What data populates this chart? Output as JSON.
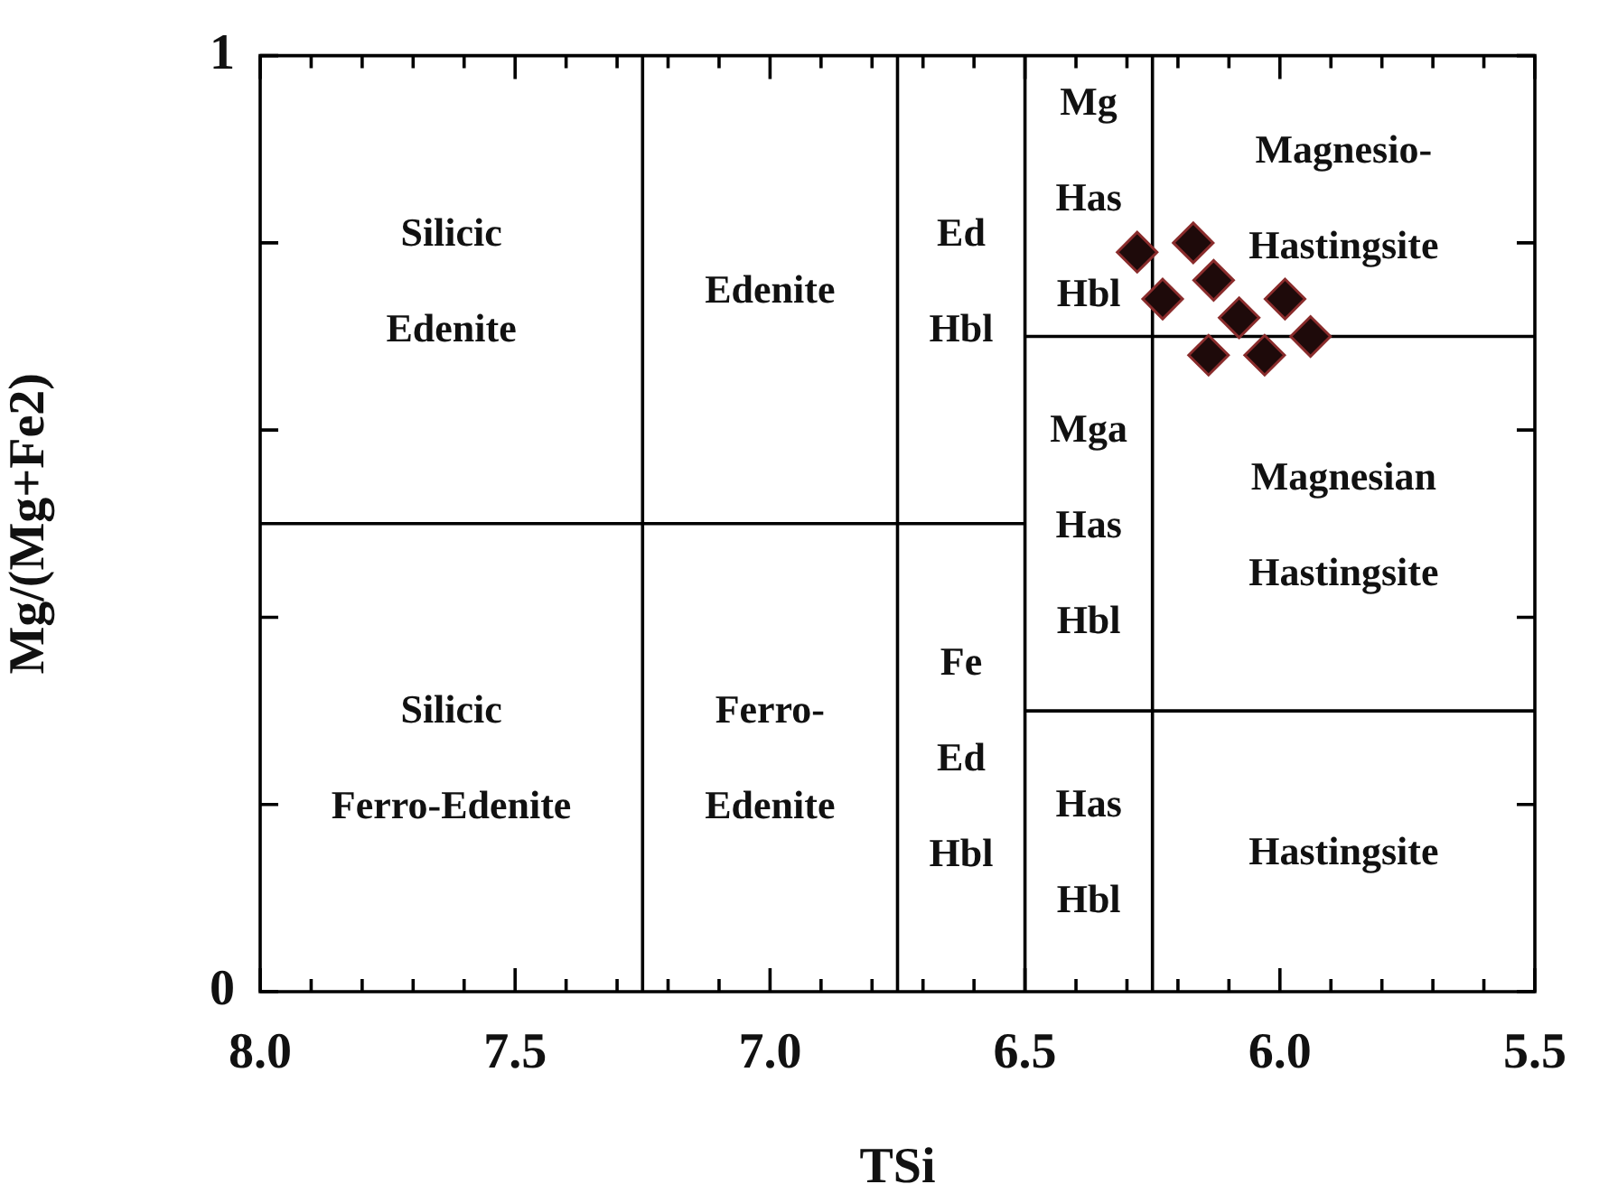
{
  "chart_data": {
    "type": "scatter",
    "xlabel": "TSi",
    "ylabel": "Mg/(Mg+Fe2)",
    "xlim": [
      8,
      5.5
    ],
    "ylim": [
      0,
      1
    ],
    "xticks": [
      {
        "value": 8,
        "label": "8.0"
      },
      {
        "value": 7.9,
        "label": null
      },
      {
        "value": 7.8,
        "label": null
      },
      {
        "value": 7.7,
        "label": null
      },
      {
        "value": 7.6,
        "label": null
      },
      {
        "value": 7.5,
        "label": "7.5"
      },
      {
        "value": 7.4,
        "label": null
      },
      {
        "value": 7.3,
        "label": null
      },
      {
        "value": 7.2,
        "label": null
      },
      {
        "value": 7.1,
        "label": null
      },
      {
        "value": 7,
        "label": "7.0"
      },
      {
        "value": 6.9,
        "label": null
      },
      {
        "value": 6.8,
        "label": null
      },
      {
        "value": 6.7,
        "label": null
      },
      {
        "value": 6.6,
        "label": null
      },
      {
        "value": 6.5,
        "label": "6.5"
      },
      {
        "value": 6.4,
        "label": null
      },
      {
        "value": 6.3,
        "label": null
      },
      {
        "value": 6.2,
        "label": null
      },
      {
        "value": 6.1,
        "label": null
      },
      {
        "value": 6,
        "label": "6.0"
      },
      {
        "value": 5.9,
        "label": null
      },
      {
        "value": 5.8,
        "label": null
      },
      {
        "value": 5.7,
        "label": null
      },
      {
        "value": 5.6,
        "label": null
      },
      {
        "value": 5.5,
        "label": "5.5"
      }
    ],
    "yticks": [
      0,
      {
        "value": 0.2,
        "label": null
      },
      {
        "value": 0.4,
        "label": null
      },
      {
        "value": 0.6,
        "label": null
      },
      {
        "value": 0.8,
        "label": null
      },
      1
    ],
    "grid": false,
    "legend": false,
    "marker": "diamond",
    "series": [
      {
        "color": "#1e0a0a",
        "x": [
          6.28,
          6.17,
          6.23,
          6.13,
          6.08,
          5.99,
          6.14,
          6.03,
          5.94
        ],
        "values": [
          0.79,
          0.8,
          0.74,
          0.76,
          0.72,
          0.74,
          0.68,
          0.68,
          0.7
        ]
      },
      {
        "type": "line",
        "color": "#000000",
        "marker": "none",
        "x": [
          8,
          6.5
        ],
        "values": [
          0.5,
          0.5
        ]
      },
      {
        "type": "line",
        "color": "#000000",
        "marker": "none",
        "x": [
          6.5,
          5.5
        ],
        "values": [
          0.7,
          0.7
        ]
      },
      {
        "type": "line",
        "color": "#000000",
        "marker": "none",
        "x": [
          6.5,
          5.5
        ],
        "values": [
          0.3,
          0.3
        ]
      }
    ],
    "ref_lines": [
      {
        "axis": "x",
        "value": 7.25,
        "color": "#000000"
      },
      {
        "axis": "x",
        "value": 6.75,
        "color": "#000000"
      },
      {
        "axis": "x",
        "value": 6.5,
        "color": "#000000"
      },
      {
        "axis": "x",
        "value": 6.25,
        "color": "#000000"
      }
    ],
    "annotations": [
      "Silicic\nEdenite",
      "Edenite",
      "Ed\nHbl",
      "Mg\nHas\nHbl",
      "Magnesio-\nHastingsite",
      "Mga\nHas\nHbl",
      "Magnesian\nHastingsite",
      "Silicic\nFerro-Edenite",
      "Ferro-\nEdenite",
      "Fe\nEd\nHbl",
      "Has\nHbl",
      "Hastingsite"
    ]
  }
}
